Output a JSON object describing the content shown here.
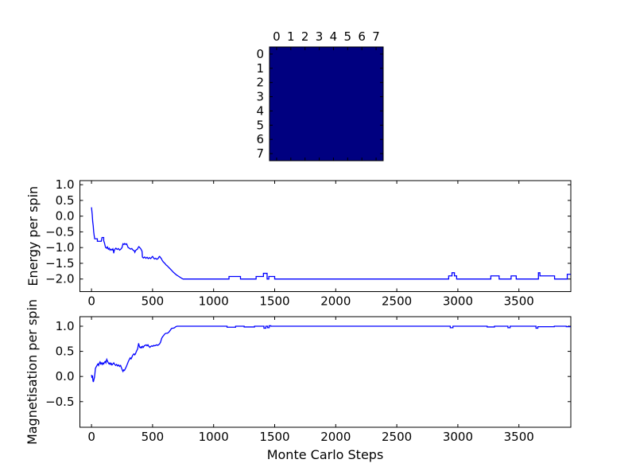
{
  "figure": {
    "background": "#ffffff",
    "line_color": "#0000ff",
    "axis_color": "#000000"
  },
  "chart_data": [
    {
      "type": "heatmap",
      "name": "spin-lattice",
      "rows": 8,
      "cols": 8,
      "x_tick_labels": [
        "0",
        "1",
        "2",
        "3",
        "4",
        "5",
        "6",
        "7"
      ],
      "y_tick_labels": [
        "0",
        "1",
        "2",
        "3",
        "4",
        "5",
        "6",
        "7"
      ],
      "cell_color": "#000080",
      "values": [
        [
          1,
          1,
          1,
          1,
          1,
          1,
          1,
          1
        ],
        [
          1,
          1,
          1,
          1,
          1,
          1,
          1,
          1
        ],
        [
          1,
          1,
          1,
          1,
          1,
          1,
          1,
          1
        ],
        [
          1,
          1,
          1,
          1,
          1,
          1,
          1,
          1
        ],
        [
          1,
          1,
          1,
          1,
          1,
          1,
          1,
          1
        ],
        [
          1,
          1,
          1,
          1,
          1,
          1,
          1,
          1
        ],
        [
          1,
          1,
          1,
          1,
          1,
          1,
          1,
          1
        ],
        [
          1,
          1,
          1,
          1,
          1,
          1,
          1,
          1
        ]
      ]
    },
    {
      "type": "line",
      "name": "energy",
      "ylabel": "Energy per spin",
      "line_color": "#0000ff",
      "xlim": [
        -95,
        3925
      ],
      "ylim": [
        -2.4,
        1.13
      ],
      "x_tick_values": [
        0,
        500,
        1000,
        1500,
        2000,
        2500,
        3000,
        3500
      ],
      "x_tick_labels": [
        "0",
        "500",
        "1000",
        "1500",
        "2000",
        "2500",
        "3000",
        "3500"
      ],
      "y_tick_values": [
        1.0,
        0.5,
        0.0,
        -0.5,
        -1.0,
        -1.5,
        -2.0
      ],
      "y_tick_labels": [
        "1.0",
        "0.5",
        "0.0",
        "−0.5",
        "−1.0",
        "−1.5",
        "−2.0"
      ],
      "grid": false,
      "points": [
        [
          0,
          0.28
        ],
        [
          6,
          0.05
        ],
        [
          10,
          -0.18
        ],
        [
          14,
          -0.3
        ],
        [
          18,
          -0.5
        ],
        [
          22,
          -0.62
        ],
        [
          26,
          -0.72
        ],
        [
          48,
          -0.72
        ],
        [
          48,
          -0.8
        ],
        [
          80,
          -0.8
        ],
        [
          84,
          -0.72
        ],
        [
          86,
          -0.68
        ],
        [
          100,
          -0.68
        ],
        [
          100,
          -0.78
        ],
        [
          106,
          -0.85
        ],
        [
          112,
          -0.95
        ],
        [
          116,
          -1.0
        ],
        [
          125,
          -1.02
        ],
        [
          130,
          -0.98
        ],
        [
          138,
          -1.05
        ],
        [
          145,
          -1.02
        ],
        [
          152,
          -1.08
        ],
        [
          160,
          -1.05
        ],
        [
          168,
          -1.08
        ],
        [
          175,
          -1.04
        ],
        [
          180,
          -1.1
        ],
        [
          182,
          -1.18
        ],
        [
          186,
          -1.1
        ],
        [
          192,
          -1.05
        ],
        [
          200,
          -1.02
        ],
        [
          210,
          -1.06
        ],
        [
          220,
          -1.03
        ],
        [
          230,
          -1.08
        ],
        [
          240,
          -1.05
        ],
        [
          250,
          -1.0
        ],
        [
          255,
          -0.92
        ],
        [
          258,
          -0.88
        ],
        [
          266,
          -0.9
        ],
        [
          272,
          -0.87
        ],
        [
          280,
          -0.9
        ],
        [
          288,
          -0.88
        ],
        [
          295,
          -0.95
        ],
        [
          300,
          -1.0
        ],
        [
          310,
          -1.02
        ],
        [
          320,
          -1.05
        ],
        [
          330,
          -1.03
        ],
        [
          340,
          -1.08
        ],
        [
          350,
          -1.1
        ],
        [
          355,
          -1.15
        ],
        [
          360,
          -1.1
        ],
        [
          368,
          -1.07
        ],
        [
          376,
          -1.05
        ],
        [
          382,
          -1.0
        ],
        [
          388,
          -0.97
        ],
        [
          395,
          -1.0
        ],
        [
          402,
          -1.03
        ],
        [
          408,
          -1.07
        ],
        [
          414,
          -1.12
        ],
        [
          417,
          -1.3
        ],
        [
          425,
          -1.33
        ],
        [
          435,
          -1.3
        ],
        [
          445,
          -1.34
        ],
        [
          455,
          -1.31
        ],
        [
          465,
          -1.35
        ],
        [
          475,
          -1.32
        ],
        [
          485,
          -1.35
        ],
        [
          495,
          -1.3
        ],
        [
          500,
          -1.28
        ],
        [
          508,
          -1.33
        ],
        [
          516,
          -1.36
        ],
        [
          525,
          -1.34
        ],
        [
          535,
          -1.37
        ],
        [
          545,
          -1.35
        ],
        [
          552,
          -1.3
        ],
        [
          558,
          -1.28
        ],
        [
          565,
          -1.32
        ],
        [
          572,
          -1.35
        ],
        [
          578,
          -1.4
        ],
        [
          585,
          -1.44
        ],
        [
          592,
          -1.47
        ],
        [
          600,
          -1.5
        ],
        [
          610,
          -1.55
        ],
        [
          620,
          -1.58
        ],
        [
          630,
          -1.62
        ],
        [
          640,
          -1.66
        ],
        [
          650,
          -1.7
        ],
        [
          660,
          -1.74
        ],
        [
          672,
          -1.79
        ],
        [
          684,
          -1.83
        ],
        [
          696,
          -1.87
        ],
        [
          708,
          -1.9
        ],
        [
          720,
          -1.93
        ],
        [
          732,
          -1.96
        ],
        [
          744,
          -1.99
        ],
        [
          750,
          -2.0
        ],
        [
          1126,
          -2.0
        ],
        [
          1126,
          -1.92
        ],
        [
          1220,
          -1.92
        ],
        [
          1220,
          -2.0
        ],
        [
          1348,
          -2.0
        ],
        [
          1348,
          -1.92
        ],
        [
          1408,
          -1.92
        ],
        [
          1408,
          -1.82
        ],
        [
          1438,
          -1.82
        ],
        [
          1438,
          -2.0
        ],
        [
          1452,
          -2.0
        ],
        [
          1452,
          -1.92
        ],
        [
          1500,
          -1.92
        ],
        [
          1500,
          -2.0
        ],
        [
          2925,
          -2.0
        ],
        [
          2925,
          -1.9
        ],
        [
          2952,
          -1.9
        ],
        [
          2952,
          -1.8
        ],
        [
          2972,
          -1.8
        ],
        [
          2972,
          -1.9
        ],
        [
          2990,
          -1.9
        ],
        [
          2990,
          -2.0
        ],
        [
          3270,
          -2.0
        ],
        [
          3270,
          -1.9
        ],
        [
          3338,
          -1.9
        ],
        [
          3338,
          -2.0
        ],
        [
          3436,
          -2.0
        ],
        [
          3436,
          -1.9
        ],
        [
          3478,
          -1.9
        ],
        [
          3478,
          -2.0
        ],
        [
          3660,
          -2.0
        ],
        [
          3660,
          -1.8
        ],
        [
          3672,
          -1.8
        ],
        [
          3672,
          -1.9
        ],
        [
          3792,
          -1.9
        ],
        [
          3792,
          -2.0
        ],
        [
          3896,
          -2.0
        ],
        [
          3896,
          -1.85
        ],
        [
          3923,
          -1.85
        ]
      ]
    },
    {
      "type": "line",
      "name": "magnetisation",
      "ylabel": "Magnetisation per spin",
      "xlabel": "Monte Carlo Steps",
      "line_color": "#0000ff",
      "xlim": [
        -95,
        3925
      ],
      "ylim": [
        -1.01,
        1.19
      ],
      "x_tick_values": [
        0,
        500,
        1000,
        1500,
        2000,
        2500,
        3000,
        3500
      ],
      "x_tick_labels": [
        "0",
        "500",
        "1000",
        "1500",
        "2000",
        "2500",
        "3000",
        "3500"
      ],
      "y_tick_values": [
        1.0,
        0.5,
        0.0,
        -0.5
      ],
      "y_tick_labels": [
        "1.0",
        "0.5",
        "0.0",
        "−0.5"
      ],
      "grid": false,
      "points": [
        [
          0,
          0.03
        ],
        [
          4,
          -0.03
        ],
        [
          8,
          0.02
        ],
        [
          12,
          -0.08
        ],
        [
          15,
          -0.11
        ],
        [
          20,
          -0.06
        ],
        [
          24,
          -0.02
        ],
        [
          28,
          0.06
        ],
        [
          32,
          0.16
        ],
        [
          38,
          0.19
        ],
        [
          45,
          0.22
        ],
        [
          52,
          0.25
        ],
        [
          58,
          0.22
        ],
        [
          64,
          0.26
        ],
        [
          70,
          0.29
        ],
        [
          76,
          0.25
        ],
        [
          82,
          0.27
        ],
        [
          88,
          0.24
        ],
        [
          94,
          0.27
        ],
        [
          100,
          0.25
        ],
        [
          106,
          0.28
        ],
        [
          112,
          0.3
        ],
        [
          118,
          0.27
        ],
        [
          125,
          0.34
        ],
        [
          132,
          0.3
        ],
        [
          138,
          0.27
        ],
        [
          144,
          0.25
        ],
        [
          150,
          0.27
        ],
        [
          156,
          0.24
        ],
        [
          162,
          0.26
        ],
        [
          168,
          0.23
        ],
        [
          175,
          0.25
        ],
        [
          182,
          0.27
        ],
        [
          190,
          0.24
        ],
        [
          198,
          0.22
        ],
        [
          206,
          0.24
        ],
        [
          214,
          0.21
        ],
        [
          222,
          0.23
        ],
        [
          230,
          0.2
        ],
        [
          238,
          0.22
        ],
        [
          246,
          0.17
        ],
        [
          252,
          0.13
        ],
        [
          258,
          0.1
        ],
        [
          264,
          0.13
        ],
        [
          270,
          0.12
        ],
        [
          278,
          0.16
        ],
        [
          286,
          0.2
        ],
        [
          294,
          0.25
        ],
        [
          302,
          0.3
        ],
        [
          310,
          0.34
        ],
        [
          317,
          0.37
        ],
        [
          324,
          0.35
        ],
        [
          330,
          0.38
        ],
        [
          337,
          0.42
        ],
        [
          343,
          0.44
        ],
        [
          348,
          0.45
        ],
        [
          354,
          0.43
        ],
        [
          360,
          0.45
        ],
        [
          366,
          0.49
        ],
        [
          372,
          0.52
        ],
        [
          378,
          0.55
        ],
        [
          383,
          0.62
        ],
        [
          386,
          0.66
        ],
        [
          390,
          0.62
        ],
        [
          395,
          0.58
        ],
        [
          400,
          0.57
        ],
        [
          406,
          0.59
        ],
        [
          412,
          0.57
        ],
        [
          418,
          0.6
        ],
        [
          425,
          0.58
        ],
        [
          432,
          0.61
        ],
        [
          440,
          0.62
        ],
        [
          448,
          0.63
        ],
        [
          455,
          0.61
        ],
        [
          462,
          0.63
        ],
        [
          470,
          0.6
        ],
        [
          478,
          0.58
        ],
        [
          486,
          0.6
        ],
        [
          494,
          0.61
        ],
        [
          502,
          0.6
        ],
        [
          510,
          0.62
        ],
        [
          518,
          0.61
        ],
        [
          526,
          0.62
        ],
        [
          534,
          0.63
        ],
        [
          542,
          0.62
        ],
        [
          550,
          0.63
        ],
        [
          558,
          0.65
        ],
        [
          565,
          0.68
        ],
        [
          570,
          0.72
        ],
        [
          575,
          0.76
        ],
        [
          582,
          0.79
        ],
        [
          589,
          0.81
        ],
        [
          595,
          0.83
        ],
        [
          602,
          0.85
        ],
        [
          610,
          0.86
        ],
        [
          620,
          0.86
        ],
        [
          628,
          0.87
        ],
        [
          636,
          0.89
        ],
        [
          642,
          0.91
        ],
        [
          648,
          0.93
        ],
        [
          654,
          0.95
        ],
        [
          660,
          0.96
        ],
        [
          670,
          0.96
        ],
        [
          680,
          0.97
        ],
        [
          690,
          0.99
        ],
        [
          700,
          1.0
        ],
        [
          1110,
          1.0
        ],
        [
          1110,
          0.98
        ],
        [
          1180,
          0.98
        ],
        [
          1180,
          1.0
        ],
        [
          1250,
          1.0
        ],
        [
          1250,
          0.985
        ],
        [
          1335,
          0.985
        ],
        [
          1335,
          1.0
        ],
        [
          1412,
          1.0
        ],
        [
          1412,
          0.96
        ],
        [
          1428,
          0.96
        ],
        [
          1428,
          1.0
        ],
        [
          1442,
          1.0
        ],
        [
          1442,
          0.97
        ],
        [
          1455,
          0.97
        ],
        [
          1455,
          1.01
        ],
        [
          1468,
          1.01
        ],
        [
          1468,
          1.0
        ],
        [
          2938,
          1.0
        ],
        [
          2938,
          0.97
        ],
        [
          2960,
          0.97
        ],
        [
          2960,
          1.0
        ],
        [
          3240,
          1.0
        ],
        [
          3240,
          0.985
        ],
        [
          3300,
          0.985
        ],
        [
          3300,
          1.0
        ],
        [
          3410,
          1.0
        ],
        [
          3410,
          0.97
        ],
        [
          3428,
          0.97
        ],
        [
          3428,
          1.0
        ],
        [
          3640,
          1.0
        ],
        [
          3640,
          0.96
        ],
        [
          3655,
          0.96
        ],
        [
          3655,
          0.99
        ],
        [
          3790,
          0.99
        ],
        [
          3790,
          1.0
        ],
        [
          3888,
          1.0
        ],
        [
          3888,
          0.99
        ],
        [
          3923,
          0.99
        ]
      ]
    }
  ]
}
